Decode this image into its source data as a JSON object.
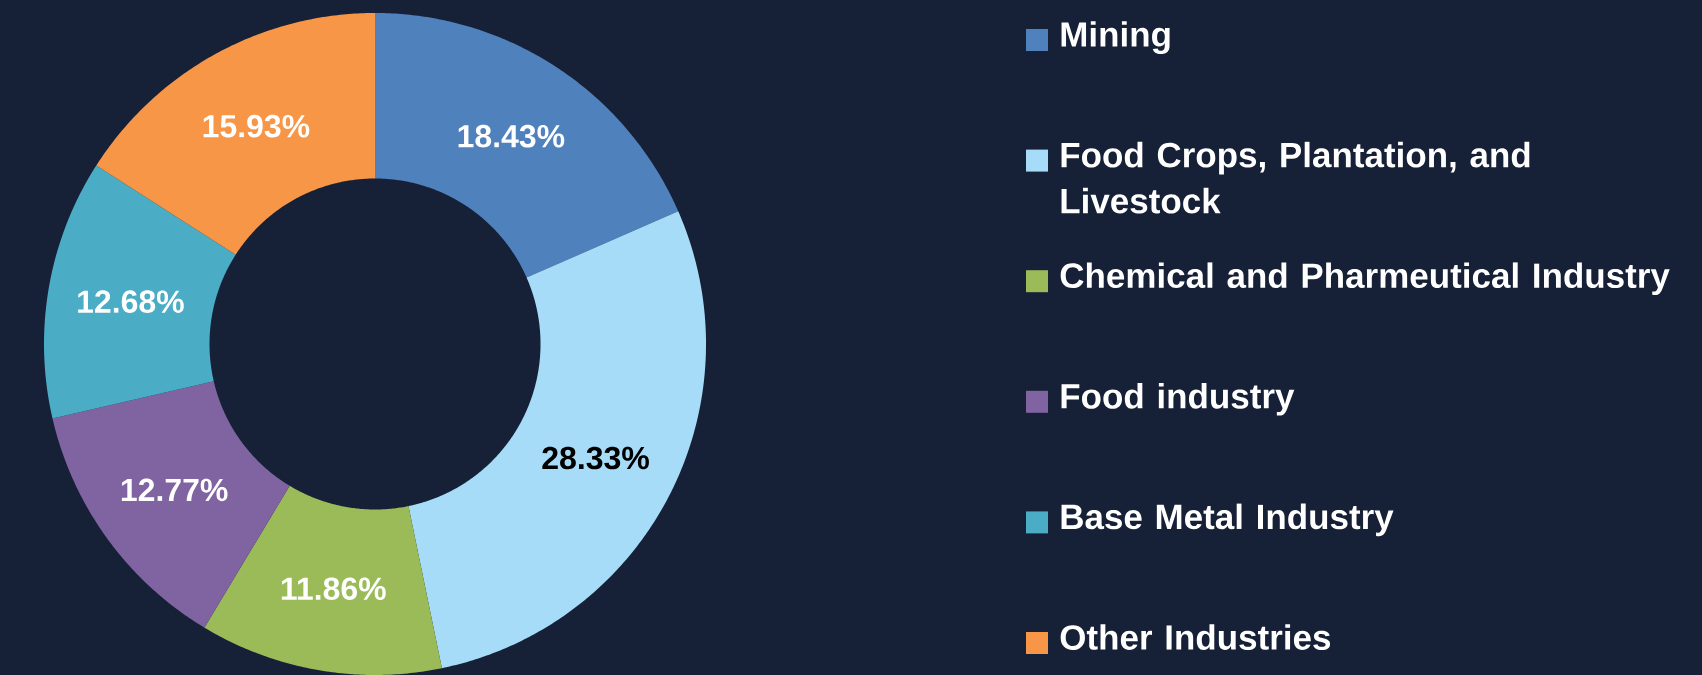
{
  "chart_data": {
    "type": "donut",
    "categories": [
      "Mining",
      "Food Crops, Plantation, and Livestock",
      "Chemical and Pharmeutical Industry",
      "Food industry",
      "Base Metal Industry",
      "Other Industries"
    ],
    "values": [
      18.43,
      28.33,
      11.86,
      12.77,
      12.68,
      15.93
    ],
    "colors": [
      "#4f81bd",
      "#a6dcf7",
      "#9bbb59",
      "#8064a2",
      "#4bacc6",
      "#f79646"
    ],
    "value_labels": [
      "18.43%",
      "28.33%",
      "11.86%",
      "12.77%",
      "12.68%",
      "15.93%"
    ],
    "legend": "right"
  }
}
